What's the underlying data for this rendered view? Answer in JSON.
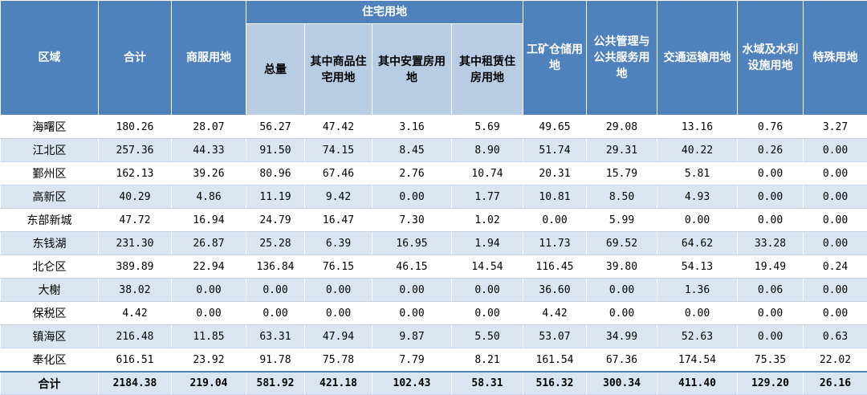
{
  "header": {
    "region": "区域",
    "total": "合计",
    "commercial": "商服用地",
    "residential_group": "住宅用地",
    "res_total": "总量",
    "res_commercial": "其中商品住宅用地",
    "res_resettlement": "其中安置房用地",
    "res_rental": "其中租赁住房用地",
    "industrial": "工矿仓储用地",
    "public": "公共管理与公共服务用地",
    "transport": "交通运输用地",
    "water": "水域及水利设施用地",
    "special": "特殊用地"
  },
  "rows": [
    {
      "region": "海曙区",
      "v": [
        "180.26",
        "28.07",
        "56.27",
        "47.42",
        "3.16",
        "5.69",
        "49.65",
        "29.08",
        "13.16",
        "0.76",
        "3.27"
      ]
    },
    {
      "region": "江北区",
      "v": [
        "257.36",
        "44.33",
        "91.50",
        "74.15",
        "8.45",
        "8.90",
        "51.74",
        "29.31",
        "40.22",
        "0.26",
        "0.00"
      ]
    },
    {
      "region": "鄞州区",
      "v": [
        "162.13",
        "39.26",
        "80.96",
        "67.46",
        "2.76",
        "10.74",
        "20.31",
        "15.79",
        "5.81",
        "0.00",
        "0.00"
      ]
    },
    {
      "region": "高新区",
      "v": [
        "40.29",
        "4.86",
        "11.19",
        "9.42",
        "0.00",
        "1.77",
        "10.81",
        "8.50",
        "4.93",
        "0.00",
        "0.00"
      ]
    },
    {
      "region": "东部新城",
      "v": [
        "47.72",
        "16.94",
        "24.79",
        "16.47",
        "7.30",
        "1.02",
        "0.00",
        "5.99",
        "0.00",
        "0.00",
        "0.00"
      ]
    },
    {
      "region": "东钱湖",
      "v": [
        "231.30",
        "26.87",
        "25.28",
        "6.39",
        "16.95",
        "1.94",
        "11.73",
        "69.52",
        "64.62",
        "33.28",
        "0.00"
      ]
    },
    {
      "region": "北仑区",
      "v": [
        "389.89",
        "22.94",
        "136.84",
        "76.15",
        "46.15",
        "14.54",
        "116.45",
        "39.80",
        "54.13",
        "19.49",
        "0.24"
      ]
    },
    {
      "region": "大榭",
      "v": [
        "38.02",
        "0.00",
        "0.00",
        "0.00",
        "0.00",
        "0.00",
        "36.60",
        "0.00",
        "1.36",
        "0.06",
        "0.00"
      ]
    },
    {
      "region": "保税区",
      "v": [
        "4.42",
        "0.00",
        "0.00",
        "0.00",
        "0.00",
        "0.00",
        "4.42",
        "0.00",
        "0.00",
        "0.00",
        "0.00"
      ]
    },
    {
      "region": "镇海区",
      "v": [
        "216.48",
        "11.85",
        "63.31",
        "47.94",
        "9.87",
        "5.50",
        "53.07",
        "34.99",
        "52.63",
        "0.00",
        "0.63"
      ]
    },
    {
      "region": "奉化区",
      "v": [
        "616.51",
        "23.92",
        "91.78",
        "75.78",
        "7.79",
        "8.21",
        "161.54",
        "67.36",
        "174.54",
        "75.35",
        "22.02"
      ]
    }
  ],
  "total_row": {
    "region": "合计",
    "v": [
      "2184.38",
      "219.04",
      "581.92",
      "421.18",
      "102.43",
      "58.31",
      "516.32",
      "300.34",
      "411.40",
      "129.20",
      "26.16"
    ]
  }
}
